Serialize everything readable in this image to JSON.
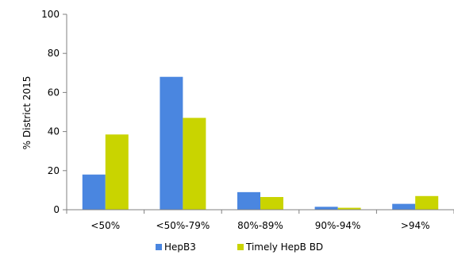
{
  "chart_data": {
    "type": "bar",
    "title": "",
    "xlabel": "",
    "ylabel": "% District 2015",
    "categories": [
      "<50%",
      "<50%-79%",
      "80%-89%",
      "90%-94%",
      ">94%"
    ],
    "series": [
      {
        "name": "HepB3",
        "values": [
          18,
          68,
          9,
          1.5,
          3
        ],
        "color": "#4A86E0"
      },
      {
        "name": "Timely HepB BD",
        "values": [
          38.5,
          47,
          6.5,
          1,
          7
        ],
        "color": "#C9D400"
      }
    ],
    "ylim": [
      0,
      100
    ],
    "yticks": [
      0,
      20,
      40,
      60,
      80,
      100
    ],
    "grid": false,
    "legend": "bottom"
  }
}
